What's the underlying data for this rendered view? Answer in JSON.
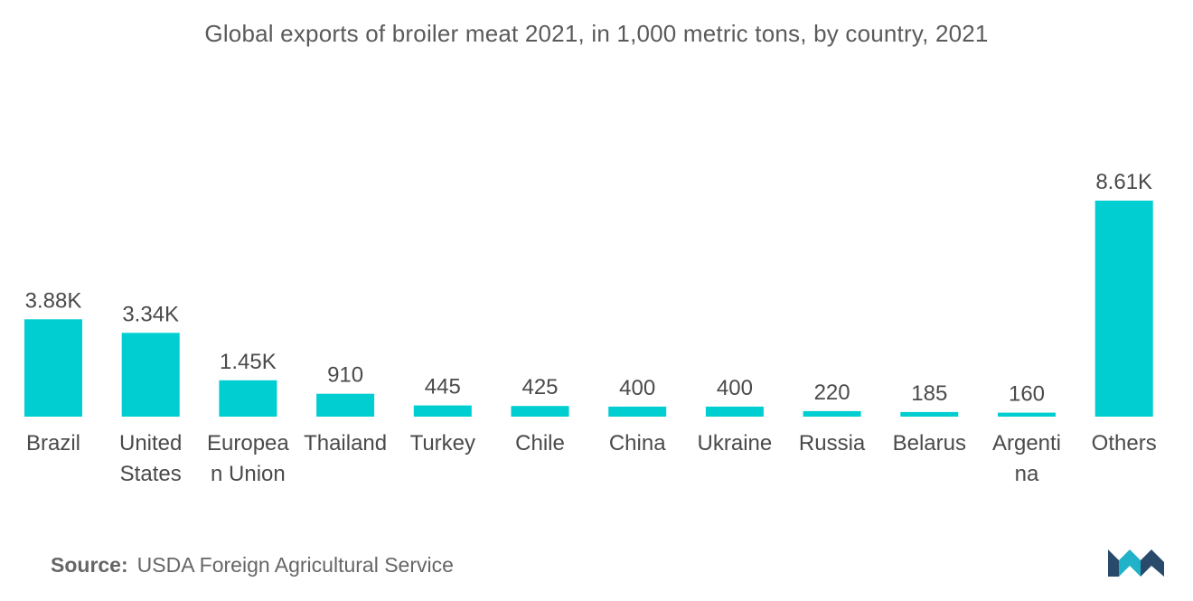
{
  "colors": {
    "bar": "#00CED1",
    "text": "#4a4a4a",
    "title": "#5a5a5a",
    "logo_dark": "#2a4a6b",
    "logo_light": "#20b2c8"
  },
  "title": "Global exports of broiler meat 2021, in 1,000 metric tons, by country, 2021",
  "source": {
    "label": "Source:",
    "text": "USDA Foreign Agricultural Service"
  },
  "chart_data": {
    "type": "bar",
    "title": "Global exports of broiler meat 2021, in 1,000 metric tons, by country, 2021",
    "xlabel": "",
    "ylabel": "",
    "grid": false,
    "categories": [
      [
        "Brazil"
      ],
      [
        "United",
        "States"
      ],
      [
        "Europea",
        "n Union"
      ],
      [
        "Thailand"
      ],
      [
        "Turkey"
      ],
      [
        "Chile"
      ],
      [
        "China"
      ],
      [
        "Ukraine"
      ],
      [
        "Russia"
      ],
      [
        "Belarus"
      ],
      [
        "Argenti",
        "na"
      ],
      [
        "Others"
      ]
    ],
    "values": [
      3880,
      3340,
      1450,
      910,
      445,
      425,
      400,
      400,
      220,
      185,
      160,
      8610
    ],
    "value_labels": [
      "3.88K",
      "3.34K",
      "1.45K",
      "910",
      "445",
      "425",
      "400",
      "400",
      "220",
      "185",
      "160",
      "8.61K"
    ],
    "ylim": [
      0,
      8610
    ]
  }
}
